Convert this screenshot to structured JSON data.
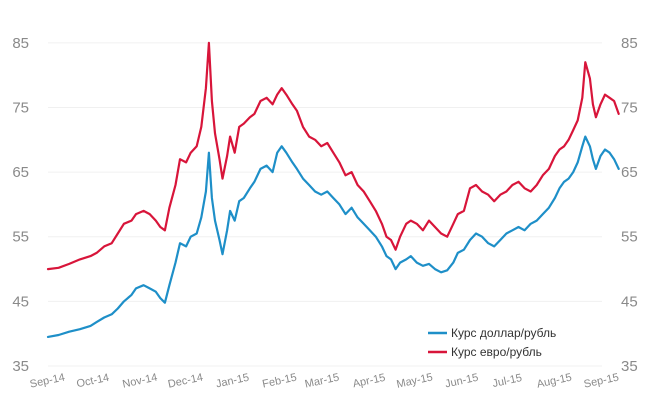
{
  "chart_data": {
    "type": "line",
    "title": "",
    "xlabel": "",
    "ylabel": "",
    "ylim": [
      35,
      89
    ],
    "yticks": [
      35,
      45,
      55,
      65,
      75,
      85
    ],
    "y_axis_left": true,
    "y_axis_right": true,
    "grid": true,
    "legend_position": "bottom-right",
    "xlim": [
      "2014-09-01",
      "2015-09-01"
    ],
    "xticks": [
      {
        "date": "2014-09-01",
        "label": "Sep-14"
      },
      {
        "date": "2014-10-01",
        "label": "Oct-14"
      },
      {
        "date": "2014-11-01",
        "label": "Nov-14"
      },
      {
        "date": "2014-12-01",
        "label": "Dec-14"
      },
      {
        "date": "2015-01-01",
        "label": "Jan-15"
      },
      {
        "date": "2015-02-01",
        "label": "Feb-15"
      },
      {
        "date": "2015-03-01",
        "label": "Mar-15"
      },
      {
        "date": "2015-04-01",
        "label": "Apr-15"
      },
      {
        "date": "2015-05-01",
        "label": "May-15"
      },
      {
        "date": "2015-06-01",
        "label": "Jun-15"
      },
      {
        "date": "2015-07-01",
        "label": "Jul-15"
      },
      {
        "date": "2015-08-01",
        "label": "Aug-15"
      },
      {
        "date": "2015-09-01",
        "label": "Sep-15"
      }
    ],
    "series": [
      {
        "name": "Курс доллар/рубль",
        "color": "#1e8fc8",
        "points": [
          [
            "2014-09-01",
            39.5
          ],
          [
            "2014-09-08",
            39.8
          ],
          [
            "2014-09-15",
            40.3
          ],
          [
            "2014-09-22",
            40.7
          ],
          [
            "2014-09-29",
            41.2
          ],
          [
            "2014-10-03",
            41.8
          ],
          [
            "2014-10-08",
            42.5
          ],
          [
            "2014-10-13",
            43.0
          ],
          [
            "2014-10-17",
            43.9
          ],
          [
            "2014-10-21",
            45.0
          ],
          [
            "2014-10-26",
            46.0
          ],
          [
            "2014-10-29",
            47.0
          ],
          [
            "2014-11-03",
            47.5
          ],
          [
            "2014-11-07",
            47.0
          ],
          [
            "2014-11-11",
            46.5
          ],
          [
            "2014-11-14",
            45.5
          ],
          [
            "2014-11-17",
            44.8
          ],
          [
            "2014-11-20",
            47.5
          ],
          [
            "2014-11-24",
            51.0
          ],
          [
            "2014-11-27",
            54.0
          ],
          [
            "2014-12-01",
            53.5
          ],
          [
            "2014-12-04",
            55.0
          ],
          [
            "2014-12-08",
            55.5
          ],
          [
            "2014-12-11",
            58.0
          ],
          [
            "2014-12-14",
            62.0
          ],
          [
            "2014-12-16",
            68.0
          ],
          [
            "2014-12-18",
            61.0
          ],
          [
            "2014-12-20",
            57.5
          ],
          [
            "2014-12-23",
            54.5
          ],
          [
            "2014-12-25",
            52.3
          ],
          [
            "2014-12-28",
            56.0
          ],
          [
            "2014-12-30",
            59.0
          ],
          [
            "2015-01-02",
            57.5
          ],
          [
            "2015-01-05",
            60.5
          ],
          [
            "2015-01-08",
            61.0
          ],
          [
            "2015-01-12",
            62.5
          ],
          [
            "2015-01-15",
            63.5
          ],
          [
            "2015-01-19",
            65.5
          ],
          [
            "2015-01-23",
            66.0
          ],
          [
            "2015-01-27",
            65.0
          ],
          [
            "2015-01-30",
            68.0
          ],
          [
            "2015-02-02",
            69.0
          ],
          [
            "2015-02-05",
            68.0
          ],
          [
            "2015-02-09",
            66.5
          ],
          [
            "2015-02-12",
            65.5
          ],
          [
            "2015-02-16",
            64.0
          ],
          [
            "2015-02-20",
            63.0
          ],
          [
            "2015-02-24",
            62.0
          ],
          [
            "2015-02-28",
            61.5
          ],
          [
            "2015-03-04",
            62.0
          ],
          [
            "2015-03-08",
            61.0
          ],
          [
            "2015-03-12",
            60.0
          ],
          [
            "2015-03-16",
            58.5
          ],
          [
            "2015-03-20",
            59.5
          ],
          [
            "2015-03-24",
            58.0
          ],
          [
            "2015-03-28",
            57.0
          ],
          [
            "2015-04-01",
            56.0
          ],
          [
            "2015-04-05",
            55.0
          ],
          [
            "2015-04-09",
            53.5
          ],
          [
            "2015-04-12",
            52.0
          ],
          [
            "2015-04-15",
            51.5
          ],
          [
            "2015-04-18",
            50.0
          ],
          [
            "2015-04-21",
            51.0
          ],
          [
            "2015-04-25",
            51.5
          ],
          [
            "2015-04-28",
            52.0
          ],
          [
            "2015-05-02",
            51.0
          ],
          [
            "2015-05-06",
            50.5
          ],
          [
            "2015-05-10",
            50.8
          ],
          [
            "2015-05-14",
            50.0
          ],
          [
            "2015-05-18",
            49.5
          ],
          [
            "2015-05-22",
            49.8
          ],
          [
            "2015-05-26",
            51.0
          ],
          [
            "2015-05-29",
            52.5
          ],
          [
            "2015-06-02",
            53.0
          ],
          [
            "2015-06-06",
            54.5
          ],
          [
            "2015-06-10",
            55.5
          ],
          [
            "2015-06-14",
            55.0
          ],
          [
            "2015-06-18",
            54.0
          ],
          [
            "2015-06-22",
            53.5
          ],
          [
            "2015-06-26",
            54.5
          ],
          [
            "2015-06-30",
            55.5
          ],
          [
            "2015-07-04",
            56.0
          ],
          [
            "2015-07-08",
            56.5
          ],
          [
            "2015-07-12",
            56.0
          ],
          [
            "2015-07-16",
            57.0
          ],
          [
            "2015-07-20",
            57.5
          ],
          [
            "2015-07-24",
            58.5
          ],
          [
            "2015-07-28",
            59.5
          ],
          [
            "2015-08-01",
            61.0
          ],
          [
            "2015-08-04",
            62.5
          ],
          [
            "2015-08-07",
            63.5
          ],
          [
            "2015-08-10",
            64.0
          ],
          [
            "2015-08-13",
            65.0
          ],
          [
            "2015-08-16",
            66.5
          ],
          [
            "2015-08-19",
            69.0
          ],
          [
            "2015-08-21",
            70.5
          ],
          [
            "2015-08-24",
            69.0
          ],
          [
            "2015-08-26",
            67.0
          ],
          [
            "2015-08-28",
            65.5
          ],
          [
            "2015-08-31",
            67.5
          ],
          [
            "2015-09-03",
            68.5
          ],
          [
            "2015-09-06",
            68.0
          ],
          [
            "2015-09-09",
            67.0
          ],
          [
            "2015-09-12",
            65.5
          ]
        ]
      },
      {
        "name": "Курс евро/рубль",
        "color": "#d8153a",
        "points": [
          [
            "2014-09-01",
            50.0
          ],
          [
            "2014-09-08",
            50.2
          ],
          [
            "2014-09-15",
            50.8
          ],
          [
            "2014-09-22",
            51.5
          ],
          [
            "2014-09-29",
            52.0
          ],
          [
            "2014-10-03",
            52.5
          ],
          [
            "2014-10-08",
            53.5
          ],
          [
            "2014-10-13",
            54.0
          ],
          [
            "2014-10-17",
            55.5
          ],
          [
            "2014-10-21",
            57.0
          ],
          [
            "2014-10-26",
            57.5
          ],
          [
            "2014-10-29",
            58.5
          ],
          [
            "2014-11-03",
            59.0
          ],
          [
            "2014-11-07",
            58.5
          ],
          [
            "2014-11-11",
            57.5
          ],
          [
            "2014-11-14",
            56.5
          ],
          [
            "2014-11-17",
            56.0
          ],
          [
            "2014-11-20",
            59.5
          ],
          [
            "2014-11-24",
            63.0
          ],
          [
            "2014-11-27",
            67.0
          ],
          [
            "2014-12-01",
            66.5
          ],
          [
            "2014-12-04",
            68.0
          ],
          [
            "2014-12-08",
            69.0
          ],
          [
            "2014-12-11",
            72.0
          ],
          [
            "2014-12-14",
            78.0
          ],
          [
            "2014-12-16",
            85.0
          ],
          [
            "2014-12-18",
            76.0
          ],
          [
            "2014-12-20",
            71.0
          ],
          [
            "2014-12-23",
            67.0
          ],
          [
            "2014-12-25",
            64.0
          ],
          [
            "2014-12-28",
            67.5
          ],
          [
            "2014-12-30",
            70.5
          ],
          [
            "2015-01-02",
            68.0
          ],
          [
            "2015-01-05",
            72.0
          ],
          [
            "2015-01-08",
            72.5
          ],
          [
            "2015-01-12",
            73.5
          ],
          [
            "2015-01-15",
            74.0
          ],
          [
            "2015-01-19",
            76.0
          ],
          [
            "2015-01-23",
            76.5
          ],
          [
            "2015-01-27",
            75.5
          ],
          [
            "2015-01-30",
            77.0
          ],
          [
            "2015-02-02",
            78.0
          ],
          [
            "2015-02-05",
            77.0
          ],
          [
            "2015-02-09",
            75.5
          ],
          [
            "2015-02-12",
            74.5
          ],
          [
            "2015-02-16",
            72.0
          ],
          [
            "2015-02-20",
            70.5
          ],
          [
            "2015-02-24",
            70.0
          ],
          [
            "2015-02-28",
            69.0
          ],
          [
            "2015-03-04",
            69.5
          ],
          [
            "2015-03-08",
            68.0
          ],
          [
            "2015-03-12",
            66.5
          ],
          [
            "2015-03-16",
            64.5
          ],
          [
            "2015-03-20",
            65.0
          ],
          [
            "2015-03-24",
            63.0
          ],
          [
            "2015-03-28",
            62.0
          ],
          [
            "2015-04-01",
            60.5
          ],
          [
            "2015-04-05",
            59.0
          ],
          [
            "2015-04-09",
            57.0
          ],
          [
            "2015-04-12",
            55.0
          ],
          [
            "2015-04-15",
            54.5
          ],
          [
            "2015-04-18",
            53.0
          ],
          [
            "2015-04-21",
            55.0
          ],
          [
            "2015-04-25",
            57.0
          ],
          [
            "2015-04-28",
            57.5
          ],
          [
            "2015-05-02",
            57.0
          ],
          [
            "2015-05-06",
            56.0
          ],
          [
            "2015-05-10",
            57.5
          ],
          [
            "2015-05-14",
            56.5
          ],
          [
            "2015-05-18",
            55.5
          ],
          [
            "2015-05-22",
            55.0
          ],
          [
            "2015-05-26",
            57.0
          ],
          [
            "2015-05-29",
            58.5
          ],
          [
            "2015-06-02",
            59.0
          ],
          [
            "2015-06-06",
            62.5
          ],
          [
            "2015-06-10",
            63.0
          ],
          [
            "2015-06-14",
            62.0
          ],
          [
            "2015-06-18",
            61.5
          ],
          [
            "2015-06-22",
            60.5
          ],
          [
            "2015-06-26",
            61.5
          ],
          [
            "2015-06-30",
            62.0
          ],
          [
            "2015-07-04",
            63.0
          ],
          [
            "2015-07-08",
            63.5
          ],
          [
            "2015-07-12",
            62.5
          ],
          [
            "2015-07-16",
            62.0
          ],
          [
            "2015-07-20",
            63.0
          ],
          [
            "2015-07-24",
            64.5
          ],
          [
            "2015-07-28",
            65.5
          ],
          [
            "2015-08-01",
            67.5
          ],
          [
            "2015-08-04",
            68.5
          ],
          [
            "2015-08-07",
            69.0
          ],
          [
            "2015-08-10",
            70.0
          ],
          [
            "2015-08-13",
            71.5
          ],
          [
            "2015-08-16",
            73.0
          ],
          [
            "2015-08-19",
            76.5
          ],
          [
            "2015-08-21",
            82.0
          ],
          [
            "2015-08-24",
            79.5
          ],
          [
            "2015-08-26",
            75.5
          ],
          [
            "2015-08-28",
            73.5
          ],
          [
            "2015-08-31",
            75.5
          ],
          [
            "2015-09-03",
            77.0
          ],
          [
            "2015-09-06",
            76.5
          ],
          [
            "2015-09-09",
            76.0
          ],
          [
            "2015-09-12",
            74.0
          ]
        ]
      }
    ]
  }
}
